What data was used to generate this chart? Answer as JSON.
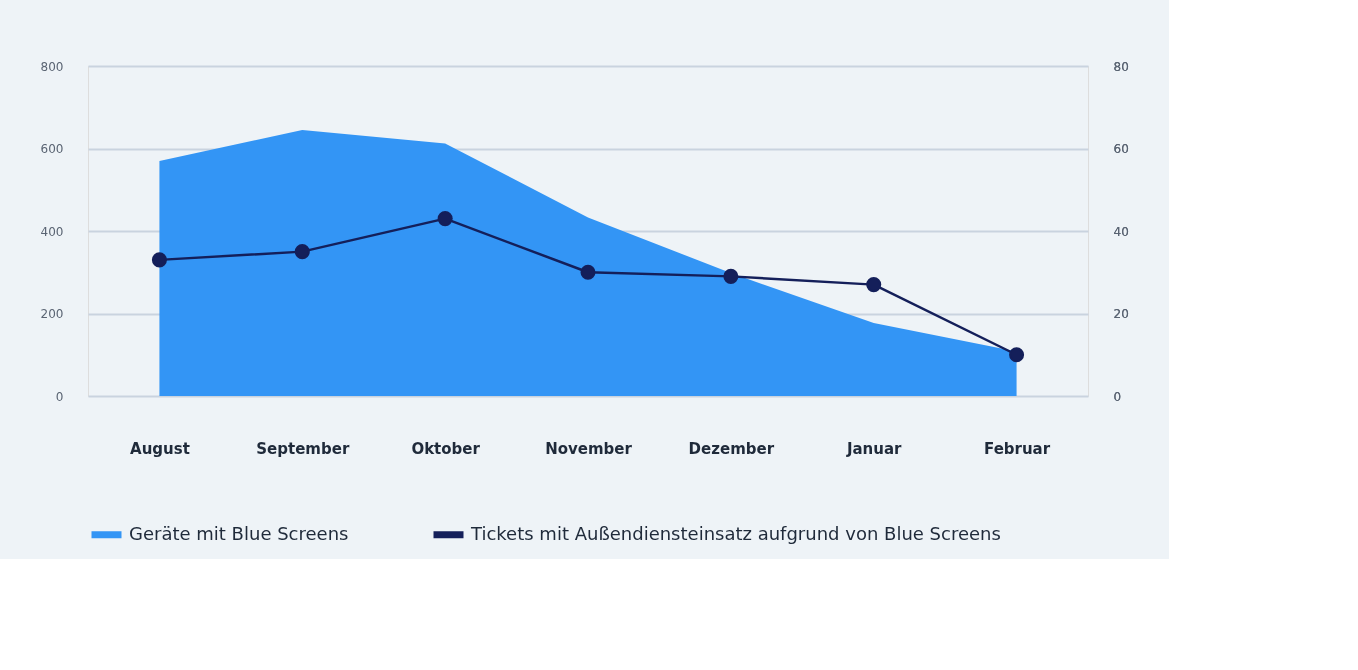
{
  "chart_data": {
    "type": "area",
    "categories": [
      "August",
      "September",
      "Oktober",
      "November",
      "Dezember",
      "Januar",
      "Februar"
    ],
    "series": [
      {
        "name": "Geräte mit Blue Screens",
        "color": "#3395f5",
        "values": [
          570,
          645,
          612,
          433,
          298,
          177,
          108
        ],
        "marker": "none"
      },
      {
        "name": "Tickets mit Außendiensteinsatz aufgrund von Blue Screens",
        "color": "#141f5a",
        "type": "line",
        "axis": "y2",
        "values": [
          33,
          35,
          43,
          30,
          29,
          27,
          10
        ],
        "marker": "circle"
      }
    ],
    "ylim": [
      0,
      800
    ],
    "yticks": [
      0,
      200,
      400,
      600,
      800
    ],
    "y2lim": [
      0,
      80
    ],
    "y2ticks": [
      0,
      20,
      40,
      60,
      80
    ],
    "grid": "y",
    "legend": "bottom"
  }
}
